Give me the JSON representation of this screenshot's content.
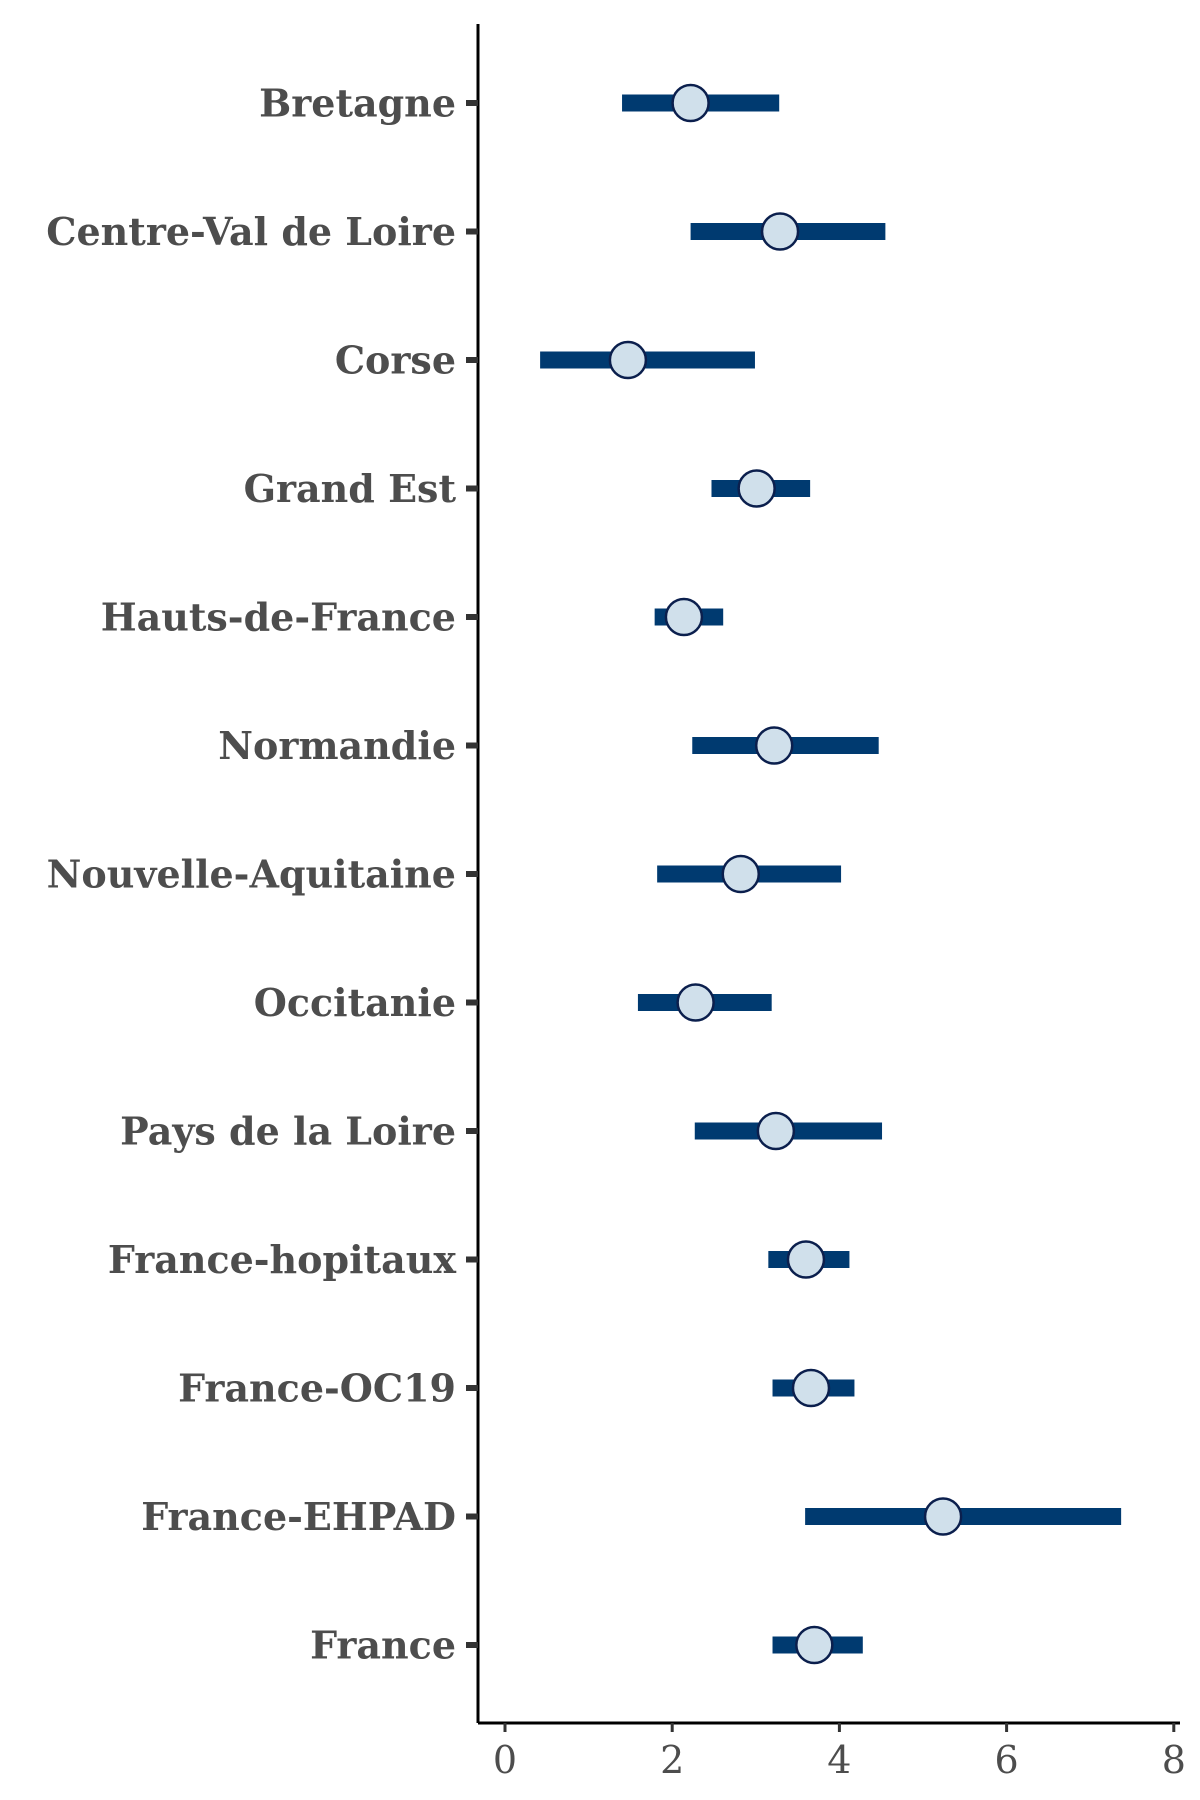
{
  "chart_data": {
    "type": "forest",
    "title": "",
    "xlabel": "",
    "ylabel": "",
    "xlim": [
      -0.3,
      8.1
    ],
    "xticks": [
      0,
      2,
      4,
      6,
      8
    ],
    "xtick_labels": [
      "0",
      "2",
      "4",
      "6",
      "8"
    ],
    "grid": false,
    "colors": {
      "interval": "#003a70",
      "point_fill": "#d0e0eb",
      "point_edge": "#0b1f4d"
    },
    "rows": [
      {
        "label": "Bretagne",
        "estimate": 2.22,
        "low": 1.4,
        "high": 3.28
      },
      {
        "label": "Centre-Val de Loire",
        "estimate": 3.29,
        "low": 2.22,
        "high": 4.55
      },
      {
        "label": "Corse",
        "estimate": 1.47,
        "low": 0.42,
        "high": 2.99
      },
      {
        "label": "Grand Est",
        "estimate": 3.01,
        "low": 2.47,
        "high": 3.65
      },
      {
        "label": "Hauts-de-France",
        "estimate": 2.14,
        "low": 1.79,
        "high": 2.61
      },
      {
        "label": "Normandie",
        "estimate": 3.22,
        "low": 2.24,
        "high": 4.47
      },
      {
        "label": "Nouvelle-Aquitaine",
        "estimate": 2.82,
        "low": 1.82,
        "high": 4.02
      },
      {
        "label": "Occitanie",
        "estimate": 2.28,
        "low": 1.59,
        "high": 3.19
      },
      {
        "label": "Pays de la Loire",
        "estimate": 3.24,
        "low": 2.27,
        "high": 4.51
      },
      {
        "label": "France-hopitaux",
        "estimate": 3.6,
        "low": 3.15,
        "high": 4.12
      },
      {
        "label": "France-OC19",
        "estimate": 3.66,
        "low": 3.2,
        "high": 4.18
      },
      {
        "label": "France-EHPAD",
        "estimate": 5.24,
        "low": 3.59,
        "high": 7.37
      },
      {
        "label": "France",
        "estimate": 3.7,
        "low": 3.2,
        "high": 4.28
      }
    ]
  }
}
